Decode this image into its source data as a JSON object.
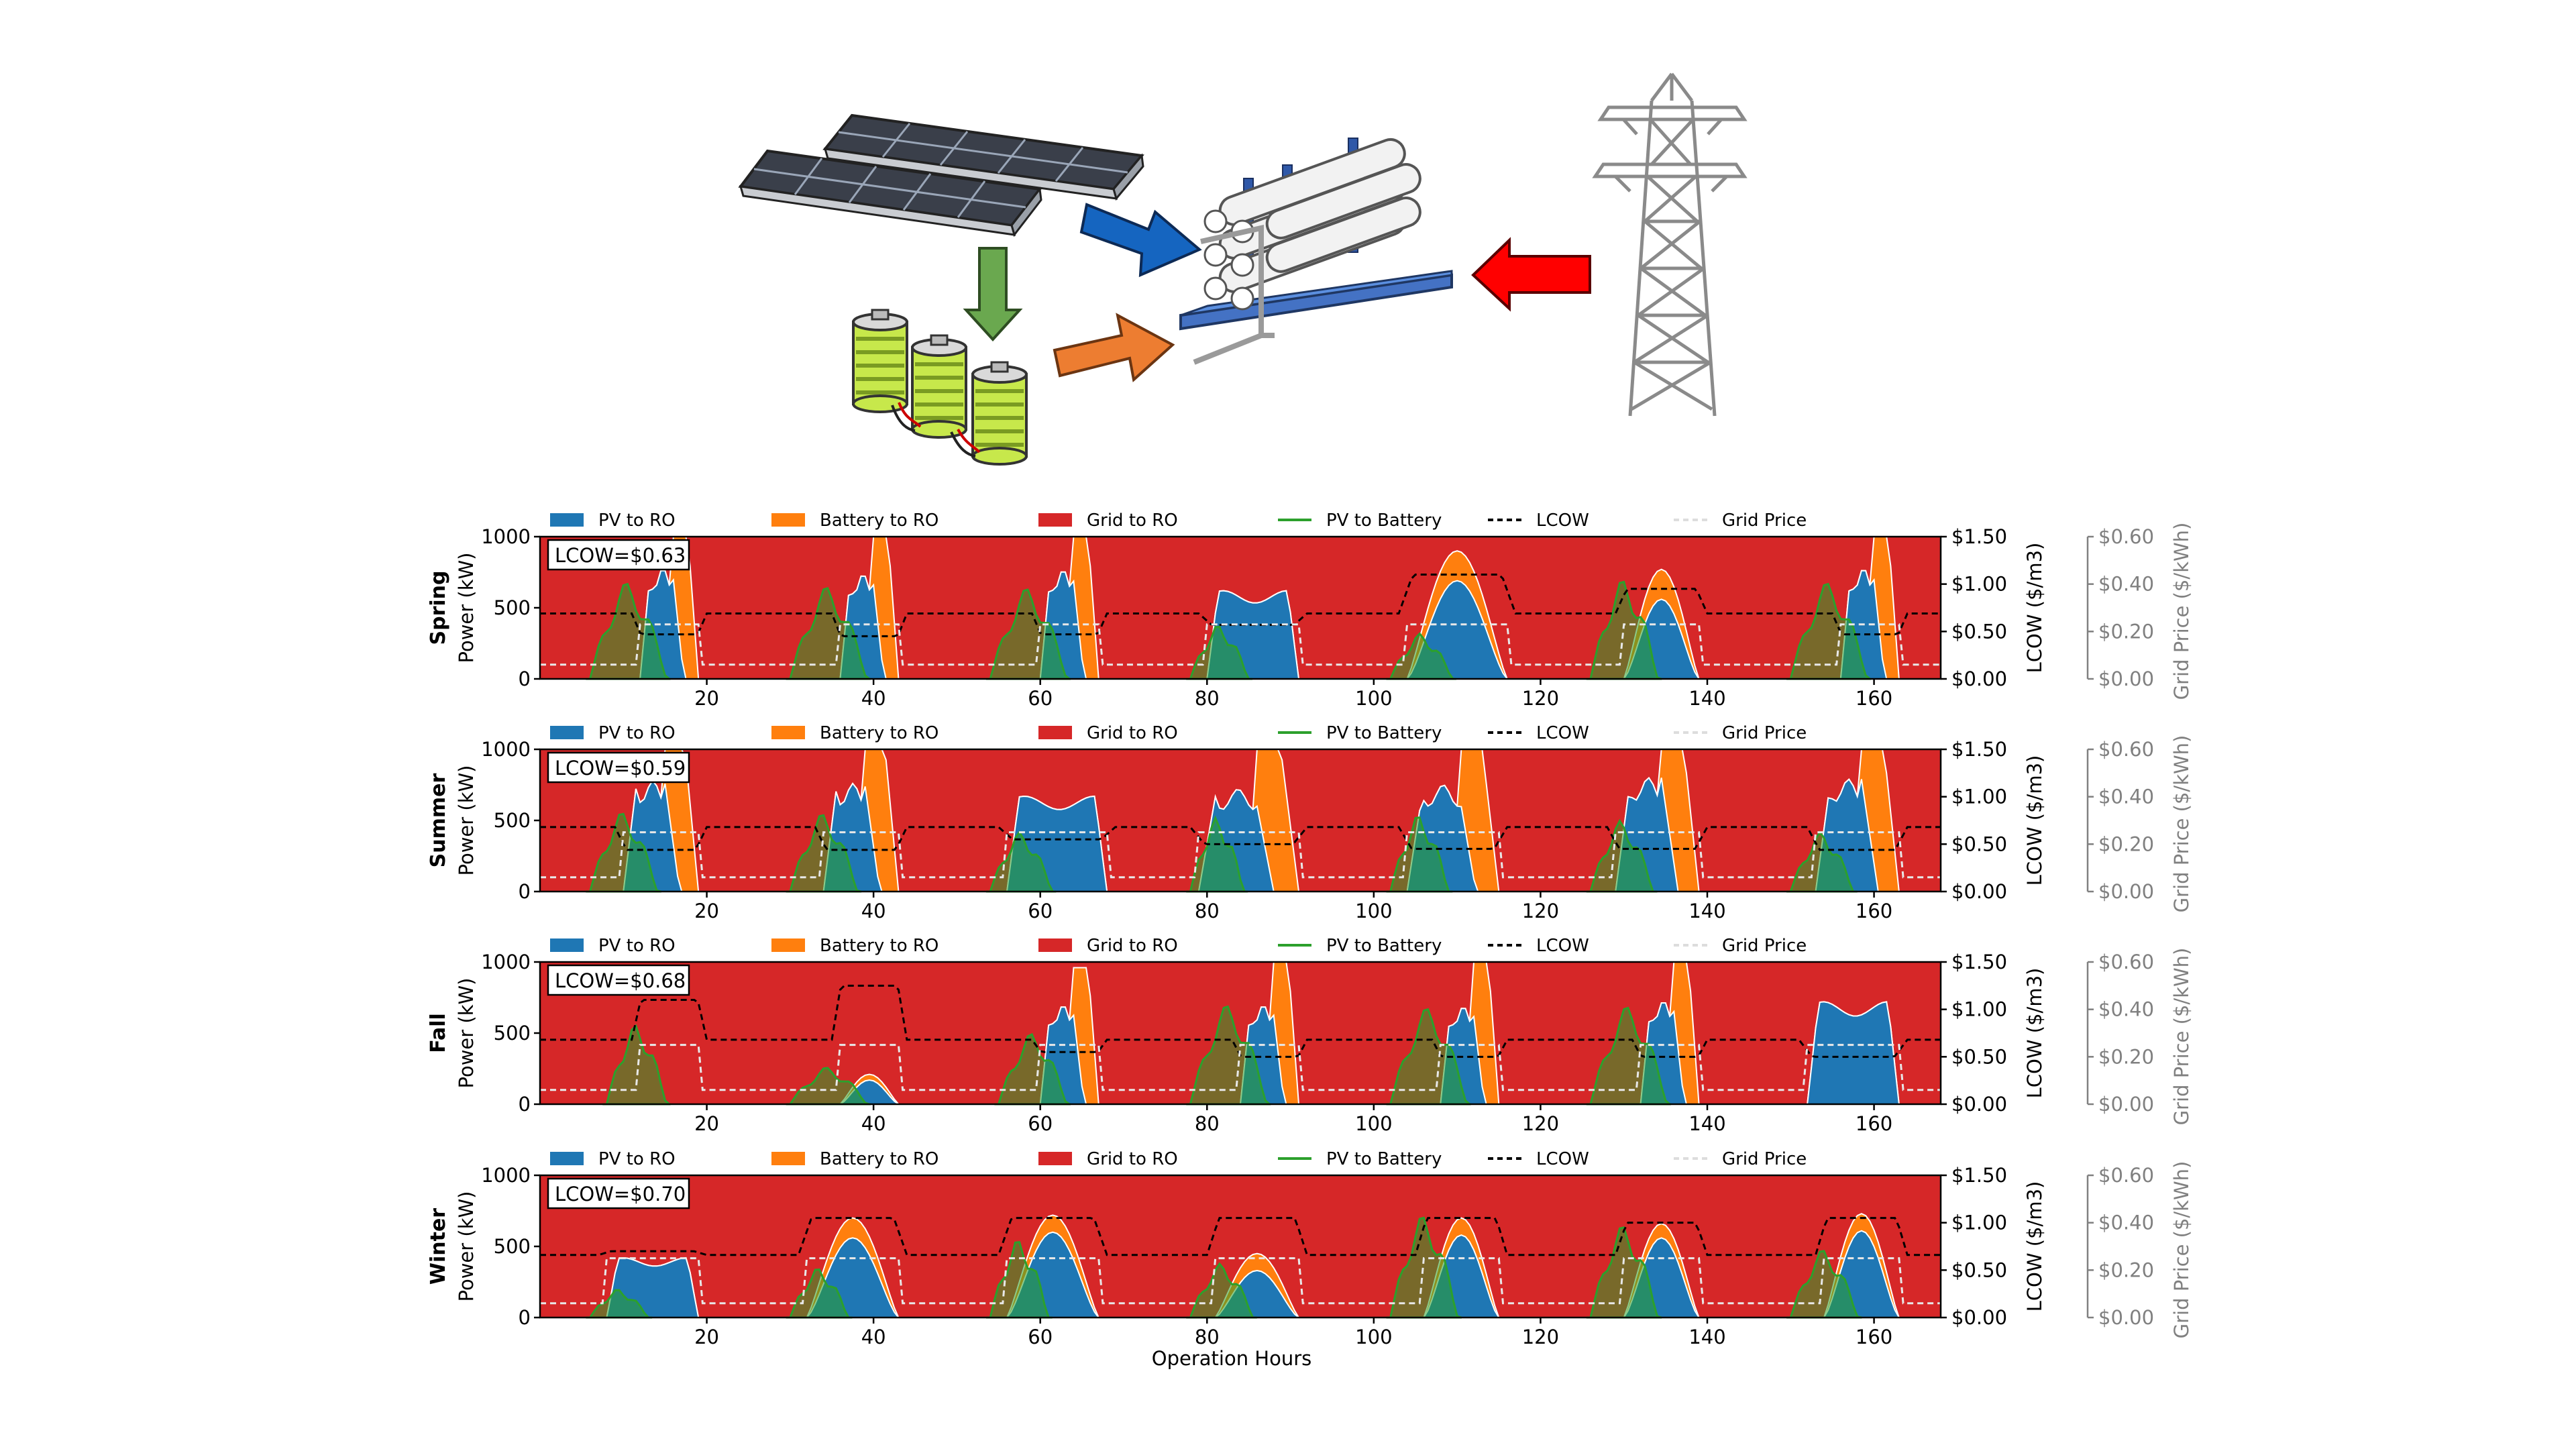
{
  "legend": {
    "items": [
      {
        "label": "PV to RO",
        "kind": "patch",
        "color": "#1f77b4"
      },
      {
        "label": "Battery to RO",
        "kind": "patch",
        "color": "#ff7f0e"
      },
      {
        "label": "Grid to RO",
        "kind": "patch",
        "color": "#d62728"
      },
      {
        "label": "PV to Battery",
        "kind": "line",
        "color": "#2ca02c"
      },
      {
        "label": "LCOW",
        "kind": "dashed",
        "color": "#000000"
      },
      {
        "label": "Grid Price",
        "kind": "dashed",
        "color": "#dddddd"
      }
    ]
  },
  "axes_labels": {
    "power": "Power (kW)",
    "lcow": "LCOW ($/m3)",
    "grid_price": "Grid Price ($/kWh)",
    "x": "Operation Hours"
  },
  "colors": {
    "pv_to_ro": "#1f77b4",
    "battery_to_ro": "#ff7f0e",
    "grid_to_ro": "#d62728",
    "pv_to_battery": "#2ca02c",
    "lcow_line": "#000000",
    "grid_price_line": "#e8e8e8",
    "grid_price_axis": "#808080",
    "arrow_pv_to_ro": "#1565c0",
    "arrow_pv_to_battery": "#6aa84f",
    "arrow_battery_to_ro": "#ed7d31",
    "arrow_grid_to_ro": "#ff0000"
  },
  "diagram": {
    "components": [
      "solar-panel-array",
      "battery-bank",
      "ro-membrane-rack",
      "transmission-tower"
    ],
    "flows": [
      {
        "from": "solar-panel-array",
        "to": "ro-membrane-rack",
        "color": "#1565c0"
      },
      {
        "from": "solar-panel-array",
        "to": "battery-bank",
        "color": "#6aa84f"
      },
      {
        "from": "battery-bank",
        "to": "ro-membrane-rack",
        "color": "#ed7d31"
      },
      {
        "from": "transmission-tower",
        "to": "ro-membrane-rack",
        "color": "#ff0000"
      }
    ]
  },
  "chart_data": [
    {
      "type": "area",
      "season": "Spring",
      "lcow_label": "LCOW=$0.63",
      "xlim": [
        0,
        168
      ],
      "xticks": [
        20,
        40,
        60,
        80,
        100,
        120,
        140,
        160
      ],
      "ylim_power": [
        0,
        1000
      ],
      "yticks_power": [
        0,
        500,
        1000
      ],
      "ylim_lcow": [
        0,
        1.5
      ],
      "yticks_lcow": [
        "$0.00",
        "$0.50",
        "$1.00",
        "$1.50"
      ],
      "ylim_grid_price": [
        0,
        0.6
      ],
      "yticks_grid_price": [
        "$0.00",
        "$0.20",
        "$0.40",
        "$0.60"
      ],
      "days": [
        {
          "s": 12,
          "e": 19,
          "pv": 780,
          "bat": 1000,
          "pvbat": 680,
          "pvbat_s": 6,
          "lcow_day": 0.47,
          "ptype": "surge"
        },
        {
          "s": 36,
          "e": 43,
          "pv": 740,
          "bat": 1000,
          "pvbat": 650,
          "pvbat_s": 30,
          "lcow_day": 0.45,
          "ptype": "surge"
        },
        {
          "s": 60,
          "e": 67,
          "pv": 770,
          "bat": 1000,
          "pvbat": 640,
          "pvbat_s": 54,
          "lcow_day": 0.47,
          "ptype": "surge"
        },
        {
          "s": 80,
          "e": 91,
          "pv": 620,
          "bat": 0,
          "pvbat": 380,
          "pvbat_s": 78,
          "lcow_day": 0.57,
          "ptype": "flat"
        },
        {
          "s": 104,
          "e": 116,
          "pv": 690,
          "bat": 900,
          "pvbat": 320,
          "pvbat_s": 102,
          "lcow_day": 1.1,
          "ptype": "peak"
        },
        {
          "s": 130,
          "e": 139,
          "pv": 560,
          "bat": 770,
          "pvbat": 700,
          "pvbat_s": 126,
          "lcow_day": 0.95,
          "ptype": "peak"
        },
        {
          "s": 156,
          "e": 163,
          "pv": 780,
          "bat": 1000,
          "pvbat": 680,
          "pvbat_s": 150,
          "lcow_day": 0.47,
          "ptype": "surge"
        }
      ],
      "lcow_base": 0.69,
      "grid_price_base": 0.06,
      "grid_price_day": 0.23
    },
    {
      "type": "area",
      "season": "Summer",
      "lcow_label": "LCOW=$0.59",
      "xlim": [
        0,
        168
      ],
      "xticks": [
        20,
        40,
        60,
        80,
        100,
        120,
        140,
        160
      ],
      "ylim_power": [
        0,
        1000
      ],
      "yticks_power": [
        0,
        500,
        1000
      ],
      "ylim_lcow": [
        0,
        1.5
      ],
      "yticks_lcow": [
        "$0.00",
        "$0.50",
        "$1.00",
        "$1.50"
      ],
      "ylim_grid_price": [
        0,
        0.6
      ],
      "yticks_grid_price": [
        "$0.00",
        "$0.20",
        "$0.40",
        "$0.60"
      ],
      "days": [
        {
          "s": 10,
          "e": 19,
          "pv": 780,
          "bat": 1000,
          "pvbat": 560,
          "pvbat_s": 6,
          "lcow_day": 0.44,
          "ptype": "surge"
        },
        {
          "s": 34,
          "e": 43,
          "pv": 760,
          "bat": 1000,
          "pvbat": 550,
          "pvbat_s": 30,
          "lcow_day": 0.44,
          "ptype": "surge"
        },
        {
          "s": 56,
          "e": 68,
          "pv": 670,
          "bat": 0,
          "pvbat": 420,
          "pvbat_s": 54,
          "lcow_day": 0.55,
          "ptype": "flat"
        },
        {
          "s": 79,
          "e": 91,
          "pv": 720,
          "bat": 1000,
          "pvbat": 520,
          "pvbat_s": 78,
          "lcow_day": 0.5,
          "ptype": "surge"
        },
        {
          "s": 104,
          "e": 115,
          "pv": 750,
          "bat": 1000,
          "pvbat": 540,
          "pvbat_s": 102,
          "lcow_day": 0.45,
          "ptype": "surge"
        },
        {
          "s": 129,
          "e": 139,
          "pv": 800,
          "bat": 1000,
          "pvbat": 500,
          "pvbat_s": 126,
          "lcow_day": 0.45,
          "ptype": "surge"
        },
        {
          "s": 153,
          "e": 163,
          "pv": 790,
          "bat": 1000,
          "pvbat": 420,
          "pvbat_s": 150,
          "lcow_day": 0.44,
          "ptype": "surge"
        }
      ],
      "lcow_base": 0.68,
      "grid_price_base": 0.06,
      "grid_price_day": 0.25
    },
    {
      "type": "area",
      "season": "Fall",
      "lcow_label": "LCOW=$0.68",
      "xlim": [
        0,
        168
      ],
      "xticks": [
        20,
        40,
        60,
        80,
        100,
        120,
        140,
        160
      ],
      "ylim_power": [
        0,
        1000
      ],
      "yticks_power": [
        0,
        500,
        1000
      ],
      "ylim_lcow": [
        0,
        1.5
      ],
      "yticks_lcow": [
        "$0.00",
        "$0.50",
        "$1.00",
        "$1.50"
      ],
      "ylim_grid_price": [
        0,
        0.6
      ],
      "yticks_grid_price": [
        "$0.00",
        "$0.20",
        "$0.40",
        "$0.60"
      ],
      "days": [
        {
          "s": 12,
          "e": 19,
          "pv": 440,
          "bat": 0,
          "pvbat": 560,
          "pvbat_s": 8,
          "lcow_day": 1.1,
          "ptype": "peak"
        },
        {
          "s": 36,
          "e": 43,
          "pv": 170,
          "bat": 210,
          "pvbat": 260,
          "pvbat_s": 30,
          "lcow_day": 1.25,
          "ptype": "peak"
        },
        {
          "s": 60,
          "e": 67,
          "pv": 700,
          "bat": 960,
          "pvbat": 500,
          "pvbat_s": 55,
          "lcow_day": 0.55,
          "ptype": "surge"
        },
        {
          "s": 84,
          "e": 91,
          "pv": 700,
          "bat": 1000,
          "pvbat": 700,
          "pvbat_s": 78,
          "lcow_day": 0.5,
          "ptype": "surge"
        },
        {
          "s": 108,
          "e": 115,
          "pv": 690,
          "bat": 1000,
          "pvbat": 680,
          "pvbat_s": 102,
          "lcow_day": 0.5,
          "ptype": "surge"
        },
        {
          "s": 132,
          "e": 139,
          "pv": 730,
          "bat": 1000,
          "pvbat": 690,
          "pvbat_s": 126,
          "lcow_day": 0.5,
          "ptype": "surge"
        },
        {
          "s": 152,
          "e": 163,
          "pv": 720,
          "bat": 0,
          "pvbat": 0,
          "pvbat_s": 150,
          "lcow_day": 0.5,
          "ptype": "flat"
        }
      ],
      "lcow_base": 0.68,
      "grid_price_base": 0.06,
      "grid_price_day": 0.25
    },
    {
      "type": "area",
      "season": "Winter",
      "lcow_label": "LCOW=$0.70",
      "xlim": [
        0,
        168
      ],
      "xticks": [
        20,
        40,
        60,
        80,
        100,
        120,
        140,
        160
      ],
      "ylim_power": [
        0,
        1000
      ],
      "yticks_power": [
        0,
        500,
        1000
      ],
      "ylim_lcow": [
        0,
        1.5
      ],
      "yticks_lcow": [
        "$0.00",
        "$0.50",
        "$1.00",
        "$1.50"
      ],
      "ylim_grid_price": [
        0,
        0.6
      ],
      "yticks_grid_price": [
        "$0.00",
        "$0.20",
        "$0.40",
        "$0.60"
      ],
      "days": [
        {
          "s": 8,
          "e": 19,
          "pv": 420,
          "bat": 0,
          "pvbat": 200,
          "pvbat_s": 6,
          "lcow_day": 0.7,
          "ptype": "flat"
        },
        {
          "s": 32,
          "e": 43,
          "pv": 560,
          "bat": 700,
          "pvbat": 350,
          "pvbat_s": 30,
          "lcow_day": 1.05,
          "ptype": "peak"
        },
        {
          "s": 56,
          "e": 67,
          "pv": 600,
          "bat": 720,
          "pvbat": 550,
          "pvbat_s": 54,
          "lcow_day": 1.05,
          "ptype": "peak"
        },
        {
          "s": 81,
          "e": 91,
          "pv": 330,
          "bat": 450,
          "pvbat": 380,
          "pvbat_s": 78,
          "lcow_day": 1.05,
          "ptype": "peak"
        },
        {
          "s": 106,
          "e": 115,
          "pv": 580,
          "bat": 700,
          "pvbat": 720,
          "pvbat_s": 102,
          "lcow_day": 1.05,
          "ptype": "peak"
        },
        {
          "s": 130,
          "e": 139,
          "pv": 560,
          "bat": 660,
          "pvbat": 650,
          "pvbat_s": 126,
          "lcow_day": 1.0,
          "ptype": "peak"
        },
        {
          "s": 154,
          "e": 163,
          "pv": 610,
          "bat": 730,
          "pvbat": 480,
          "pvbat_s": 150,
          "lcow_day": 1.05,
          "ptype": "peak"
        }
      ],
      "lcow_base": 0.66,
      "grid_price_base": 0.06,
      "grid_price_day": 0.25
    }
  ]
}
